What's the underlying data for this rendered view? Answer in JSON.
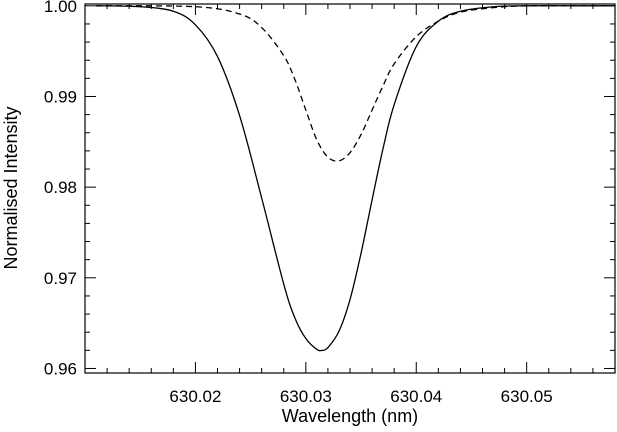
{
  "chart_data": {
    "type": "line",
    "xlabel": "Wavelength (nm)",
    "ylabel": "Normalised Intensity",
    "xlim": [
      630.01,
      630.058
    ],
    "ylim": [
      0.9595,
      1.0002
    ],
    "x_major_ticks": [
      630.02,
      630.03,
      630.04,
      630.05
    ],
    "x_tick_labels": [
      "630.02",
      "630.03",
      "630.04",
      "630.05"
    ],
    "y_major_ticks": [
      0.96,
      0.97,
      0.98,
      0.99,
      1.0
    ],
    "y_tick_labels": [
      "0.96",
      "0.97",
      "0.98",
      "0.99",
      "1.00"
    ],
    "grid": false,
    "series": [
      {
        "style": "solid",
        "color": "#000000",
        "x": [
          630.011,
          630.015,
          630.018,
          630.02,
          630.022,
          630.024,
          630.026,
          630.028,
          630.029,
          630.03,
          630.031,
          630.0315,
          630.032,
          630.033,
          630.034,
          630.035,
          630.036,
          630.037,
          630.038,
          630.04,
          630.042,
          630.044,
          630.047,
          630.05,
          630.055,
          630.058
        ],
        "y": [
          1.0,
          0.9999,
          0.9994,
          0.9979,
          0.9944,
          0.9879,
          0.9788,
          0.9693,
          0.9656,
          0.9633,
          0.9621,
          0.962,
          0.9623,
          0.9641,
          0.9676,
          0.9727,
          0.9786,
          0.9843,
          0.9891,
          0.9955,
          0.9983,
          0.9994,
          0.9999,
          1.0,
          1.0,
          1.0
        ]
      },
      {
        "style": "dashed",
        "color": "#000000",
        "x": [
          630.011,
          630.02,
          630.024,
          630.026,
          630.028,
          630.029,
          630.03,
          630.031,
          630.032,
          630.033,
          630.034,
          630.035,
          630.036,
          630.037,
          630.038,
          630.04,
          630.042,
          630.044,
          630.047,
          630.05,
          630.055,
          630.058
        ],
        "y": [
          1.0,
          0.9999,
          0.9991,
          0.9976,
          0.9945,
          0.9919,
          0.9885,
          0.9852,
          0.9833,
          0.9829,
          0.9838,
          0.9858,
          0.9885,
          0.9912,
          0.9936,
          0.9966,
          0.9983,
          0.9993,
          0.9998,
          1.0,
          1.0,
          1.0
        ]
      }
    ]
  }
}
